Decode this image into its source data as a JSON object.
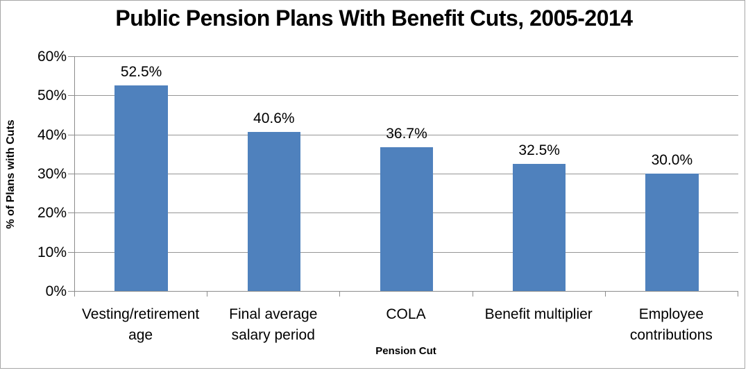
{
  "chart_data": {
    "type": "bar",
    "title": "Public Pension Plans With Benefit Cuts, 2005-2014",
    "xlabel": "Pension Cut",
    "ylabel": "% of Plans with Cuts",
    "categories": [
      "Vesting/retirement age",
      "Final average salary period",
      "COLA",
      "Benefit multiplier",
      "Employee contributions"
    ],
    "categories_display": [
      "Vesting/retirement\nage",
      "Final average\nsalary period",
      "COLA",
      "Benefit multiplier",
      "Employee\ncontributions"
    ],
    "values": [
      52.5,
      40.6,
      36.7,
      32.5,
      30.0
    ],
    "data_labels": [
      "52.5%",
      "40.6%",
      "36.7%",
      "32.5%",
      "30.0%"
    ],
    "ylim": [
      0,
      60
    ],
    "ytick_step": 10,
    "ytick_labels": [
      "0%",
      "10%",
      "20%",
      "30%",
      "40%",
      "50%",
      "60%"
    ],
    "grid": true,
    "legend": "none"
  },
  "colors": {
    "bar": "#4F81BD",
    "gridline": "#959595",
    "axis": "#8c8c8c",
    "frame_border": "#a6a6a6",
    "text": "#000000",
    "background": "#ffffff"
  }
}
